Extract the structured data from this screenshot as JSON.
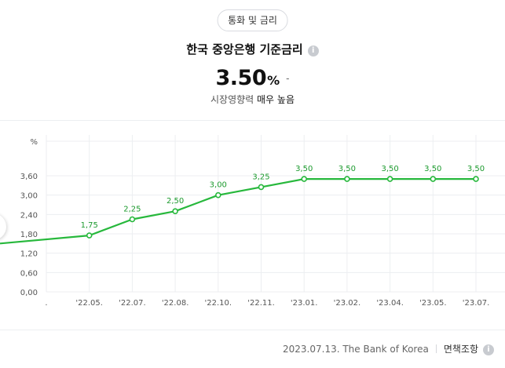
{
  "header": {
    "category_chip": "통화 및 금리",
    "title": "한국 중앙은행 기준금리",
    "info_icon": "i",
    "rate_value": "3.50",
    "rate_unit": "%",
    "rate_change": "-",
    "impact_label": "시장영향력",
    "impact_level": "매우 높음"
  },
  "footer": {
    "source": "2023.07.13. The Bank of Korea",
    "disclaimer": "면책조항",
    "info_icon": "i"
  },
  "colors": {
    "line": "#27b83c",
    "label": "#1c9a2e",
    "grid": "#eceef1",
    "axis_text": "#555555"
  },
  "chart_data": {
    "type": "line",
    "ylabel": "%",
    "ylim": [
      0,
      3.6
    ],
    "yticks": [
      "0,00",
      "0,60",
      "1,20",
      "1,80",
      "2,40",
      "3,00",
      "3,60"
    ],
    "categories": [
      ".",
      "'22.05.",
      "'22.07.",
      "'22.08.",
      "'22.10.",
      "'22.11.",
      "'23.01.",
      "'23.02.",
      "'23.04.",
      "'23.05.",
      "'23.07."
    ],
    "values": [
      1.5,
      1.75,
      2.25,
      2.5,
      3.0,
      3.25,
      3.5,
      3.5,
      3.5,
      3.5,
      3.5
    ],
    "data_labels": [
      "",
      "1,75",
      "2,25",
      "2,50",
      "3,00",
      "3,25",
      "3,50",
      "3,50",
      "3,50",
      "3,50",
      "3,50"
    ],
    "grid": true
  }
}
